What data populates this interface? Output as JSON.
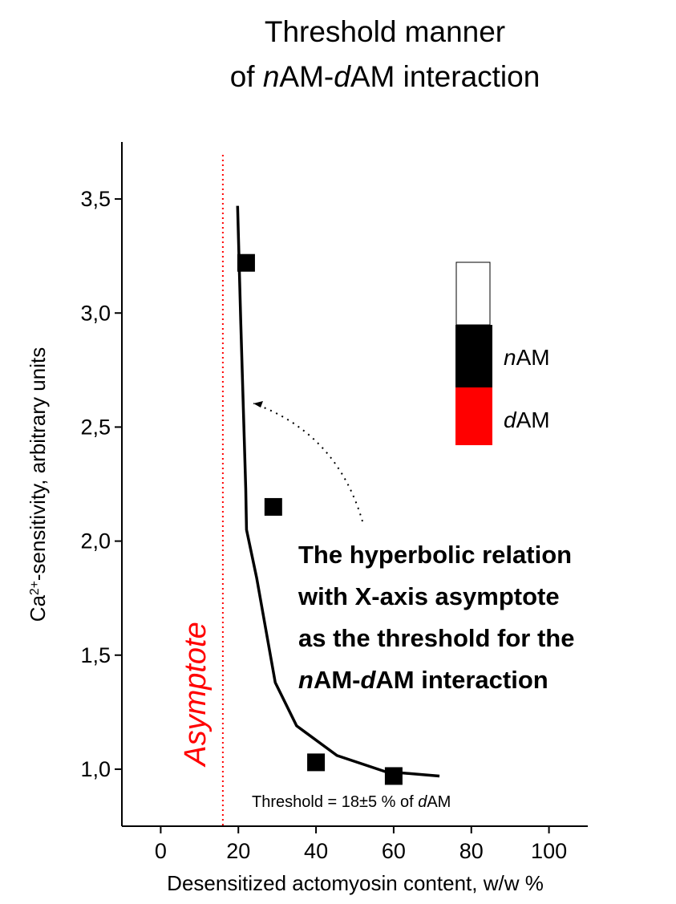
{
  "chart_data": {
    "type": "scatter",
    "title": [
      [
        {
          "text": "Threshold  manner"
        }
      ],
      [
        {
          "text": "of "
        },
        {
          "text": "n",
          "italic": true
        },
        {
          "text": "AM-"
        },
        {
          "text": "d",
          "italic": true
        },
        {
          "text": "AM interaction"
        }
      ]
    ],
    "xlabel": [
      {
        "text": "Desensitized actomyosin content, w/w %"
      }
    ],
    "ylabel": [
      {
        "text": "Ca"
      },
      {
        "text": "2+",
        "sup": true
      },
      {
        "text": "-sensitivity, arbitrary units"
      }
    ],
    "xlim": [
      -10,
      110
    ],
    "ylim": [
      0.75,
      3.75
    ],
    "xticks": [
      0,
      20,
      40,
      60,
      80,
      100
    ],
    "yticks": [
      {
        "value": 1.0,
        "label": "1,0"
      },
      {
        "value": 1.5,
        "label": "1,5"
      },
      {
        "value": 2.0,
        "label": "2,0"
      },
      {
        "value": 2.5,
        "label": "2,5"
      },
      {
        "value": 3.0,
        "label": "3,0"
      },
      {
        "value": 3.5,
        "label": "3,5"
      }
    ],
    "series": [
      {
        "type": "scatter",
        "color": "#000000",
        "x": [
          22,
          29,
          40,
          60
        ],
        "values": [
          3.22,
          2.15,
          1.03,
          0.97
        ]
      },
      {
        "type": "line",
        "color": "#000000",
        "x": [
          19.8,
          20.6,
          21.9,
          22.1,
          24.7,
          29.5,
          35,
          45.4,
          57.7,
          71.8
        ],
        "values": [
          3.47,
          2.97,
          2.23,
          2.05,
          1.84,
          1.38,
          1.19,
          1.06,
          0.99,
          0.97
        ]
      }
    ],
    "asymptote": {
      "x": 16,
      "color": "#ff0000",
      "label": [
        {
          "text": "Asymptote",
          "italic": true
        }
      ]
    },
    "threshold_note": [
      {
        "text": "Threshold = 18±5 % of "
      },
      {
        "text": "d",
        "italic": true
      },
      {
        "text": "AM"
      }
    ],
    "annotation": [
      [
        {
          "text": "The hyperbolic relation"
        }
      ],
      [
        {
          "text": "with X-axis asymptote"
        }
      ],
      [
        {
          "text": "as the threshold for the"
        }
      ],
      [
        {
          "text": "n",
          "italic": true
        },
        {
          "text": "AM-"
        },
        {
          "text": "d",
          "italic": true
        },
        {
          "text": "AM interaction"
        }
      ]
    ],
    "legend": [
      {
        "name": [
          {
            "text": "n",
            "italic": true
          },
          {
            "text": "AM"
          }
        ],
        "color": "#000000"
      },
      {
        "name": [
          {
            "text": "d",
            "italic": true
          },
          {
            "text": "AM"
          }
        ],
        "color": "#ff0000"
      }
    ]
  }
}
